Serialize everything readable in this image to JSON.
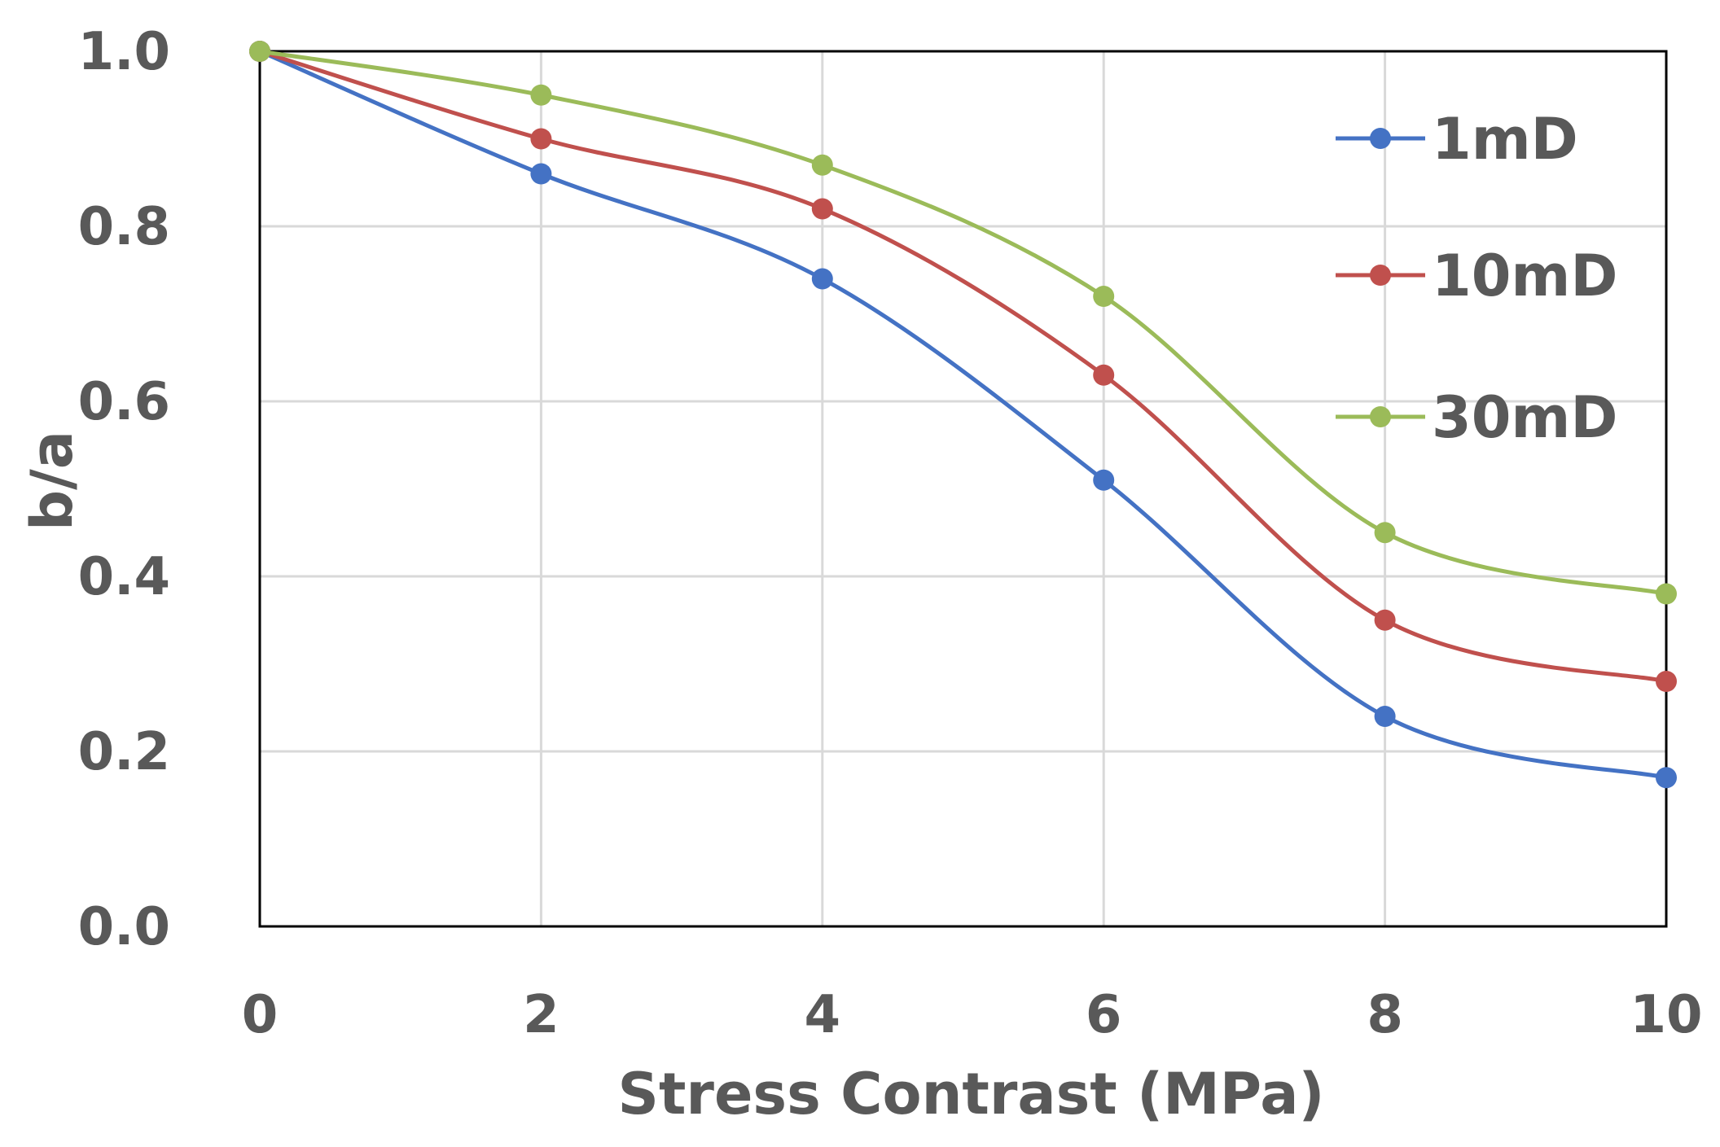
{
  "chart_data": {
    "type": "line",
    "title": "",
    "xlabel": "Stress Contrast (MPa)",
    "ylabel": "b/a",
    "x": [
      0,
      2,
      4,
      6,
      8,
      10
    ],
    "xlim": [
      0,
      10
    ],
    "ylim": [
      0,
      1
    ],
    "x_ticks": [
      "0",
      "2",
      "4",
      "6",
      "8",
      "10"
    ],
    "y_ticks": [
      "0.0",
      "0.2",
      "0.4",
      "0.6",
      "0.8",
      "1.0"
    ],
    "grid": true,
    "legend_position": "top-right",
    "series": [
      {
        "name": "1mD",
        "color": "#4472C4",
        "values": [
          1.0,
          0.86,
          0.74,
          0.51,
          0.24,
          0.17
        ]
      },
      {
        "name": "10mD",
        "color": "#C0504D",
        "values": [
          1.0,
          0.9,
          0.82,
          0.63,
          0.35,
          0.28
        ]
      },
      {
        "name": "30mD",
        "color": "#9BBB59",
        "values": [
          1.0,
          0.95,
          0.87,
          0.72,
          0.45,
          0.38
        ]
      }
    ]
  }
}
